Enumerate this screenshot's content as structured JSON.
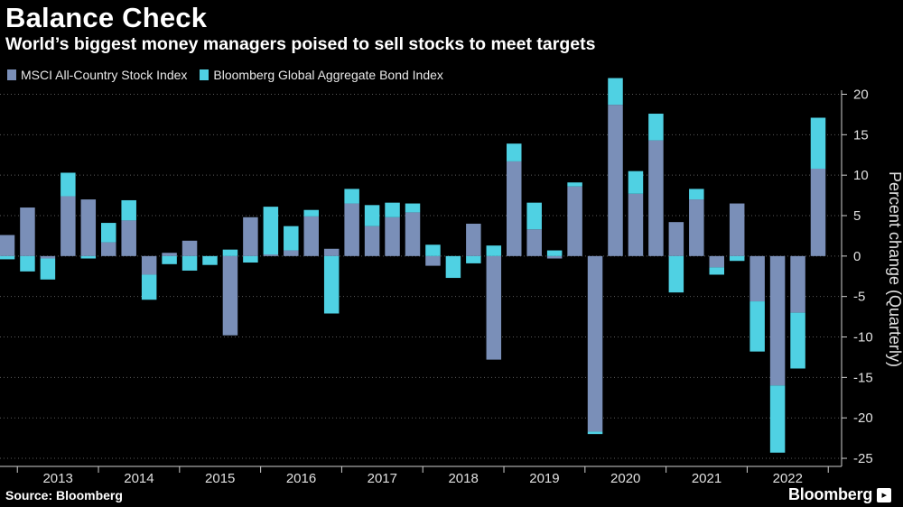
{
  "chart_data": {
    "type": "bar",
    "stacked": true,
    "title": "Balance Check",
    "subtitle": "World’s biggest money managers poised to sell stocks to meet targets",
    "ylabel": "Percent change (Quarterly)",
    "xlabel": "",
    "ylim": [
      -26,
      20.5
    ],
    "y_ticks": [
      20,
      15,
      10,
      5,
      0,
      -5,
      -10,
      -15,
      -20,
      -25
    ],
    "grid": true,
    "legend_position": "top-left",
    "year_labels": [
      "2013",
      "2014",
      "2015",
      "2016",
      "2017",
      "2018",
      "2019",
      "2020",
      "2021",
      "2022"
    ],
    "categories": [
      "2012 Q4",
      "2013 Q1",
      "2013 Q2",
      "2013 Q3",
      "2013 Q4",
      "2014 Q1",
      "2014 Q2",
      "2014 Q3",
      "2014 Q4",
      "2015 Q1",
      "2015 Q2",
      "2015 Q3",
      "2015 Q4",
      "2016 Q1",
      "2016 Q2",
      "2016 Q3",
      "2016 Q4",
      "2017 Q1",
      "2017 Q2",
      "2017 Q3",
      "2017 Q4",
      "2018 Q1",
      "2018 Q2",
      "2018 Q3",
      "2018 Q4",
      "2019 Q1",
      "2019 Q2",
      "2019 Q3",
      "2019 Q4",
      "2020 Q1",
      "2020 Q2",
      "2020 Q3",
      "2020 Q4",
      "2021 Q1",
      "2021 Q2",
      "2021 Q3",
      "2021 Q4",
      "2022 Q1",
      "2022 Q2",
      "2022 Q3",
      "2022 Q4"
    ],
    "series": [
      {
        "name": "MSCI All-Country Stock Index",
        "color": "#7a8fb8",
        "values": [
          2.6,
          6.0,
          -0.3,
          7.4,
          7.0,
          1.7,
          4.4,
          -2.3,
          0.4,
          1.9,
          0.0,
          -9.8,
          4.8,
          0.2,
          0.7,
          4.9,
          0.9,
          6.5,
          3.7,
          4.8,
          5.4,
          -1.2,
          0.0,
          4.0,
          -12.8,
          11.7,
          3.3,
          -0.3,
          8.6,
          -21.7,
          18.7,
          7.7,
          14.3,
          4.2,
          7.0,
          -1.4,
          6.5,
          -5.6,
          -16.0,
          -7.0,
          10.8
        ]
      },
      {
        "name": "Bloomberg Global Aggregate Bond Index",
        "color": "#4fd1e3",
        "values": [
          -0.4,
          -1.9,
          -2.6,
          2.9,
          -0.3,
          2.4,
          2.5,
          -3.1,
          -1.0,
          -1.8,
          -1.1,
          0.8,
          -0.8,
          5.9,
          3.0,
          0.8,
          -7.1,
          1.8,
          2.6,
          1.8,
          1.1,
          1.4,
          -2.7,
          -0.9,
          1.3,
          2.2,
          3.3,
          0.7,
          0.5,
          -0.3,
          3.3,
          2.8,
          3.3,
          -4.5,
          1.3,
          -0.9,
          -0.6,
          -6.2,
          -8.3,
          -6.9,
          6.3
        ]
      }
    ]
  },
  "source_text": "Source: Bloomberg",
  "brand_text": "Bloomberg",
  "brand_mark": "▸"
}
